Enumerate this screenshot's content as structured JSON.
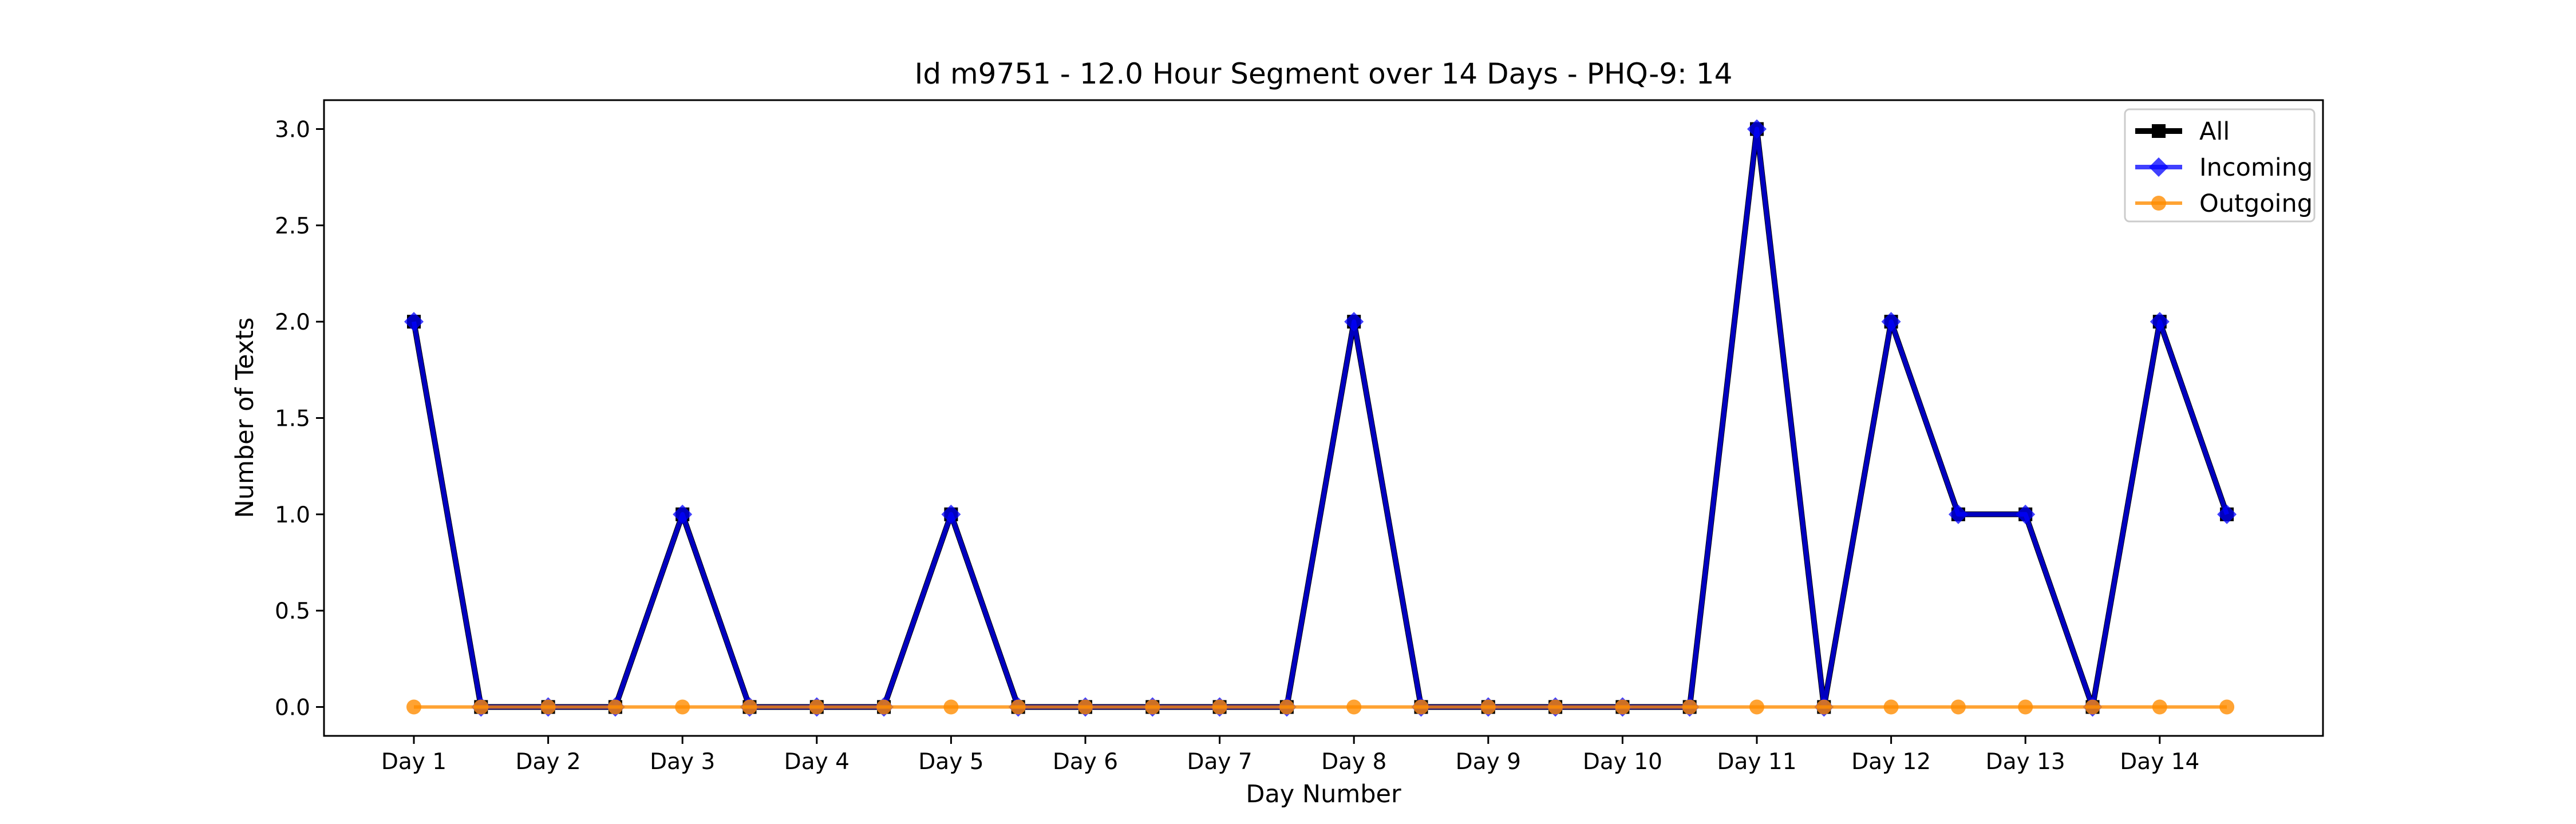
{
  "chart_data": {
    "type": "line",
    "title": "Id m9751 - 12.0 Hour Segment over 14 Days - PHQ-9: 14",
    "xlabel": "Day Number",
    "ylabel": "Number of Texts",
    "x_tick_labels": [
      "Day 1",
      "Day 2",
      "Day 3",
      "Day 4",
      "Day 5",
      "Day 6",
      "Day 7",
      "Day 8",
      "Day 9",
      "Day 10",
      "Day 11",
      "Day 12",
      "Day 13",
      "Day 14"
    ],
    "y_ticks": [
      "0.0",
      "0.5",
      "1.0",
      "1.5",
      "2.0",
      "2.5",
      "3.0"
    ],
    "ylim": [
      -0.15,
      3.15
    ],
    "segments_per_day": 2,
    "grid": false,
    "legend_position": "top-right",
    "series": [
      {
        "name": "All",
        "color": "#000000",
        "marker": "square",
        "values": [
          2,
          0,
          0,
          0,
          1,
          0,
          0,
          0,
          1,
          0,
          0,
          0,
          0,
          0,
          2,
          0,
          0,
          0,
          0,
          0,
          3,
          0,
          2,
          1,
          1,
          0,
          2,
          1
        ]
      },
      {
        "name": "Incoming",
        "color": "#0000ff",
        "marker": "diamond",
        "values": [
          2,
          0,
          0,
          0,
          1,
          0,
          0,
          0,
          1,
          0,
          0,
          0,
          0,
          0,
          2,
          0,
          0,
          0,
          0,
          0,
          3,
          0,
          2,
          1,
          1,
          0,
          2,
          1
        ]
      },
      {
        "name": "Outgoing",
        "color": "#ff8c00",
        "marker": "circle",
        "values": [
          0,
          0,
          0,
          0,
          0,
          0,
          0,
          0,
          0,
          0,
          0,
          0,
          0,
          0,
          0,
          0,
          0,
          0,
          0,
          0,
          0,
          0,
          0,
          0,
          0,
          0,
          0,
          0
        ]
      }
    ]
  }
}
